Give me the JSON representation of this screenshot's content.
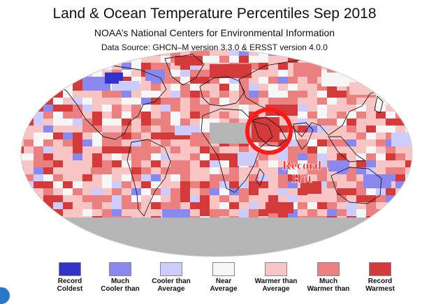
{
  "header": {
    "title": "Land & Ocean Temperature Percentiles Sep 2018",
    "subtitle": "NOAA’s National Centers for Environmental Information",
    "source": "Data Source: GHCN–M version 3.3.0 & ERSST version 4.0.0"
  },
  "annotation": {
    "line1": "Record",
    "line2": "Hot",
    "color": "#ff1a1a"
  },
  "palette": {
    "record_coldest": "#3333cc",
    "much_cooler": "#8888ee",
    "cooler": "#ccccff",
    "near": "#f7f7f7",
    "warmer": "#f9c4c4",
    "much_warmer": "#ea8080",
    "record_warmest": "#d53a3a",
    "missing": "#b5b5b5"
  },
  "legend": [
    {
      "label": "Record\nColdest",
      "color": "#3333cc"
    },
    {
      "label": "Much\nCooler than",
      "color": "#8888ee"
    },
    {
      "label": "Cooler than\nAverage",
      "color": "#ccccff"
    },
    {
      "label": "Near\nAverage",
      "color": "#f7f7f7"
    },
    {
      "label": "Warmer than\nAverage",
      "color": "#f9c4c4"
    },
    {
      "label": "Much\nWarmer than",
      "color": "#ea8080"
    },
    {
      "label": "Record\nWarmest",
      "color": "#d53a3a"
    }
  ]
}
